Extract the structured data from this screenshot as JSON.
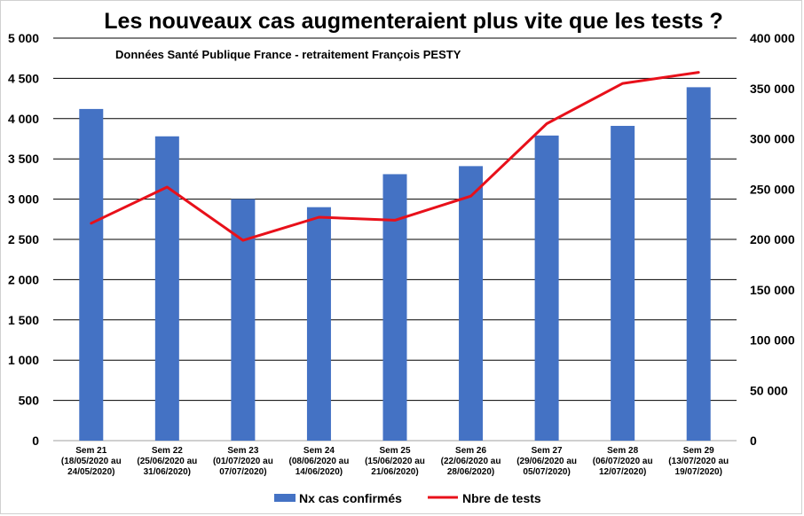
{
  "chart_data": {
    "type": "bar",
    "title": "Les nouveaux cas augmenteraient plus vite que les tests ?",
    "subtitle": "Données Santé Publique France - retraitement François PESTY",
    "categories": [
      [
        "Sem 21",
        "(18/05/2020 au",
        "24/05/2020)"
      ],
      [
        "Sem 22",
        "(25/06/2020 au",
        "31/06/2020)"
      ],
      [
        "Sem 23",
        "(01/07/2020 au",
        "07/07/2020)"
      ],
      [
        "Sem 24",
        "(08/06/2020 au",
        "14/06/2020)"
      ],
      [
        "Sem 25",
        "(15/06/2020 au",
        "21/06/2020)"
      ],
      [
        "Sem 26",
        "(22/06/2020 au",
        "28/06/2020)"
      ],
      [
        "Sem 27",
        "(29/06/2020 au",
        "05/07/2020)"
      ],
      [
        "Sem 28",
        "(06/07/2020 au",
        "12/07/2020)"
      ],
      [
        "Sem 29",
        "(13/07/2020 au",
        "19/07/2020)"
      ]
    ],
    "series": [
      {
        "name": "Nx cas confirmés",
        "type": "bar",
        "axis": "left",
        "color": "#4472c4",
        "values": [
          4120,
          3780,
          3000,
          2900,
          3310,
          3410,
          3790,
          3910,
          4390
        ]
      },
      {
        "name": "Nbre de tests",
        "type": "line",
        "axis": "right",
        "color": "#e8101a",
        "values": [
          216000,
          252000,
          199000,
          222000,
          219000,
          243000,
          315000,
          355000,
          366000
        ]
      }
    ],
    "y_left": {
      "min": 0,
      "max": 5000,
      "ticks": [
        0,
        500,
        1000,
        1500,
        2000,
        2500,
        3000,
        3500,
        4000,
        4500,
        5000
      ],
      "tick_labels": [
        "0",
        "500",
        "1 000",
        "1 500",
        "2 000",
        "2 500",
        "3 000",
        "3 500",
        "4 000",
        "4 500",
        "5 000"
      ]
    },
    "y_right": {
      "min": 0,
      "max": 400000,
      "ticks": [
        0,
        50000,
        100000,
        150000,
        200000,
        250000,
        300000,
        350000,
        400000
      ],
      "tick_labels": [
        "0",
        "50 000",
        "100 000",
        "150 000",
        "200 000",
        "250 000",
        "300 000",
        "350 000",
        "400 000"
      ]
    },
    "grid": true,
    "legend_position": "bottom"
  }
}
